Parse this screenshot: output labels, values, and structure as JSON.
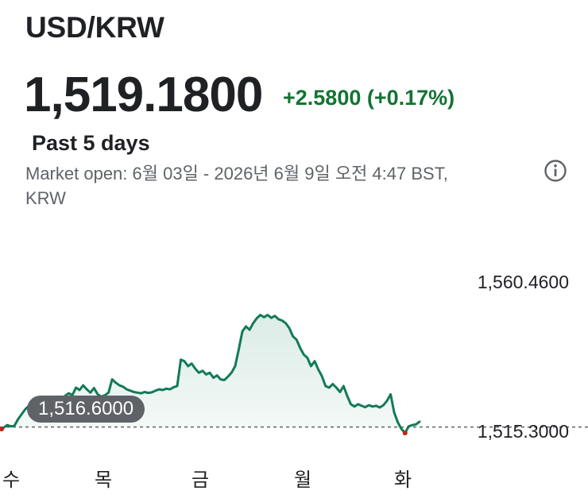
{
  "header": {
    "pair": "USD/KRW",
    "price": "1,519.1800",
    "change": "+2.5800 (+0.17%)",
    "range_label": "Past 5 days",
    "meta_line1": "Market open: 6월 03일 - 2026년 6월 9일 오전 4:47 BST,",
    "meta_line2": "KRW",
    "info_icon": "info-icon"
  },
  "colors": {
    "line": "#137a56",
    "fill": "#e8f3ef",
    "positive": "#137333",
    "prev_marker": "#c5221f",
    "baseline": "#5f6368"
  },
  "chart_data": {
    "type": "line",
    "x_labels": [
      "수",
      "목",
      "금",
      "월",
      "화"
    ],
    "y_tick_labels": [
      "1,560.4600",
      "1,515.3000"
    ],
    "ylim": [
      1515.3,
      1560.46
    ],
    "previous_close_label": "1,516.6000",
    "previous_close": 1516.6,
    "series": [
      {
        "values": [
          1516.0,
          1516.4,
          1517.2,
          1516.8,
          1517.0,
          1519.0,
          1520.5,
          1522.0,
          1523.0,
          1522.5,
          1524.0,
          1523.5,
          1525.0,
          1524.6,
          1523.8,
          1524.2,
          1525.8,
          1525.2,
          1526.0,
          1526.8,
          1526.2,
          1528.5,
          1527.8,
          1529.2,
          1528.0,
          1527.0,
          1528.4,
          1526.5,
          1525.8,
          1526.2,
          1527.0,
          1531.0,
          1530.0,
          1529.2,
          1528.8,
          1528.0,
          1527.6,
          1527.2,
          1527.0,
          1526.8,
          1527.2,
          1526.9,
          1527.1,
          1527.6,
          1528.0,
          1527.8,
          1528.2,
          1528.0,
          1528.6,
          1529.0,
          1537.0,
          1536.5,
          1535.0,
          1535.8,
          1534.2,
          1533.0,
          1533.6,
          1532.5,
          1533.0,
          1531.5,
          1532.2,
          1531.0,
          1530.8,
          1531.8,
          1533.0,
          1535.0,
          1540.0,
          1545.5,
          1547.0,
          1546.0,
          1548.0,
          1549.5,
          1550.5,
          1549.8,
          1550.5,
          1549.6,
          1550.2,
          1549.2,
          1548.8,
          1548.0,
          1546.5,
          1544.0,
          1543.0,
          1540.5,
          1538.5,
          1537.5,
          1535.0,
          1536.5,
          1534.0,
          1532.0,
          1529.0,
          1528.5,
          1529.6,
          1528.5,
          1527.2,
          1529.0,
          1526.0,
          1523.5,
          1522.8,
          1523.5,
          1523.0,
          1522.6,
          1523.2,
          1522.8,
          1523.0,
          1522.5,
          1523.2,
          1524.5,
          1526.5,
          1521.0,
          1518.0,
          1516.0,
          1514.8,
          1516.8,
          1517.2,
          1517.4,
          1518.2
        ]
      }
    ]
  }
}
